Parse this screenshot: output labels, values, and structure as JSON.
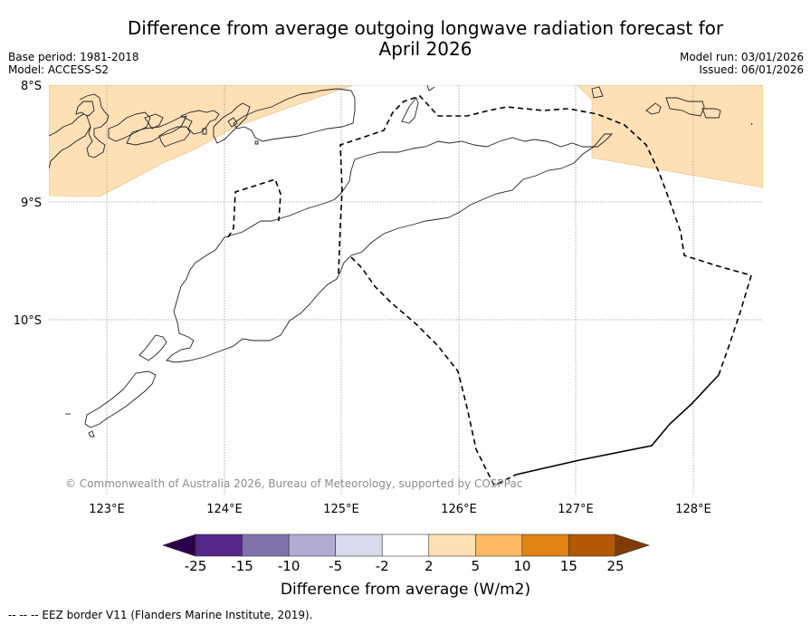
{
  "title_line1": "Difference from average outgoing longwave radiation forecast for",
  "title_line2": "April 2026",
  "base_period": "Base period: 1981-2018",
  "model": "Model: ACCESS-S2",
  "model_run": "Model run: 03/01/2026",
  "issued": "Issued: 06/01/2026",
  "map": {
    "lon_range": [
      122.5,
      128.6
    ],
    "lat_range": [
      -11.5,
      -8.0
    ],
    "lat_ticks": [
      "8°S",
      "9°S",
      "10°S"
    ],
    "lon_ticks": [
      "123°E",
      "124°E",
      "125°E",
      "126°E",
      "127°E",
      "128°E"
    ],
    "anomaly_regions": [
      {
        "name": "north-west-positive-anomaly",
        "category": "2 to 5",
        "color": "#fee0b6"
      },
      {
        "name": "north-east-positive-anomaly",
        "category": "2 to 5",
        "color": "#fee0b6"
      }
    ],
    "layers": [
      "coastline",
      "EEZ border"
    ]
  },
  "credit": "© Commonwealth of Australia 2026, Bureau of Meteorology, supported by COSPPac",
  "colorbar": {
    "title": "Difference from average (W/m2)",
    "ticks": [
      "-25",
      "-15",
      "-10",
      "-5",
      "-2",
      "2",
      "5",
      "10",
      "15",
      "25"
    ],
    "under_color": "#2d004b",
    "over_color": "#7f3b08",
    "bins": [
      {
        "range": "-25 to -15",
        "color": "#542788"
      },
      {
        "range": "-15 to -10",
        "color": "#8073ac"
      },
      {
        "range": "-10 to -5",
        "color": "#b2abd2"
      },
      {
        "range": "-5 to -2",
        "color": "#d8daeb"
      },
      {
        "range": "-2 to 2",
        "color": "#ffffff"
      },
      {
        "range": "2 to 5",
        "color": "#fee0b6"
      },
      {
        "range": "5 to 10",
        "color": "#fdb863"
      },
      {
        "range": "10 to 15",
        "color": "#e08214"
      },
      {
        "range": "15 to 25",
        "color": "#b35806"
      }
    ]
  },
  "eez_note": "--  --  -- EEZ border V11 (Flanders Marine Institute, 2019)."
}
